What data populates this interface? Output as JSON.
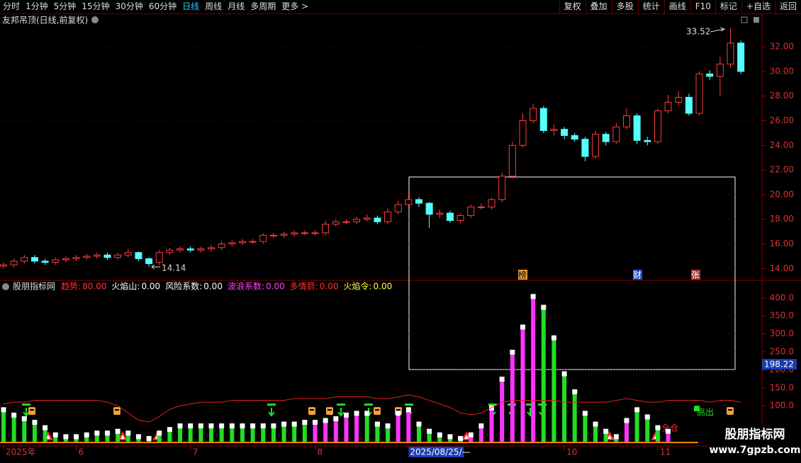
{
  "toolbar": {
    "left": [
      "分时",
      "1分钟",
      "5分钟",
      "15分钟",
      "30分钟",
      "60分钟",
      "日线",
      "周线",
      "月线",
      "多周期",
      "更多 >"
    ],
    "active_index": 6,
    "right": [
      "复权",
      "叠加",
      "多股",
      "统计",
      "画线",
      "F10",
      "标记",
      "+自选",
      "返回"
    ]
  },
  "chart_data": [
    {
      "type": "candlestick",
      "title": "友邦吊顶(日线,前复权)",
      "categories": [
        "2025年",
        null,
        null,
        null,
        null,
        null,
        null,
        "6",
        null,
        null,
        null,
        null,
        null,
        null,
        null,
        null,
        null,
        null,
        "7",
        null,
        null,
        null,
        null,
        null,
        null,
        null,
        null,
        null,
        null,
        null,
        "8",
        null,
        null,
        null,
        null,
        null,
        null,
        null,
        null,
        null,
        null,
        null,
        null,
        null,
        null,
        null,
        null,
        null,
        null,
        null,
        null,
        null,
        null,
        null,
        "10",
        null,
        null,
        null,
        null,
        null,
        null,
        null,
        null,
        "11",
        null,
        null,
        null,
        null,
        null,
        null,
        null,
        null
      ],
      "open": [
        14.2,
        14.3,
        14.6,
        14.9,
        14.6,
        14.5,
        14.7,
        14.8,
        14.9,
        15.0,
        15.1,
        14.9,
        15.1,
        15.3,
        14.8,
        14.5,
        15.3,
        15.5,
        15.6,
        15.5,
        15.6,
        15.7,
        16.0,
        16.1,
        16.2,
        16.2,
        16.7,
        16.7,
        16.8,
        16.9,
        16.9,
        16.9,
        17.6,
        17.8,
        17.8,
        18.0,
        18.1,
        17.8,
        18.6,
        19.2,
        19.6,
        19.3,
        18.4,
        18.5,
        17.9,
        18.3,
        19.0,
        19.0,
        19.6,
        21.5,
        24.0,
        26.0,
        27.0,
        25.2,
        25.3,
        24.8,
        24.5,
        23.1,
        24.9,
        24.3,
        25.5,
        26.4,
        24.4,
        24.3,
        26.8,
        27.5,
        27.9,
        26.6,
        29.8,
        29.6,
        30.6,
        32.3
      ],
      "high": [
        14.5,
        14.8,
        15.1,
        15.1,
        14.8,
        14.9,
        15.0,
        15.1,
        15.2,
        15.3,
        15.3,
        15.3,
        15.6,
        15.4,
        14.9,
        15.5,
        15.7,
        15.8,
        15.8,
        15.8,
        15.9,
        16.2,
        16.3,
        16.4,
        16.4,
        16.9,
        16.9,
        17.0,
        17.1,
        17.1,
        17.1,
        17.9,
        18.0,
        18.0,
        18.2,
        18.4,
        18.3,
        18.9,
        19.5,
        20.2,
        19.8,
        19.4,
        18.8,
        18.7,
        18.5,
        19.2,
        19.3,
        19.8,
        21.8,
        24.3,
        26.6,
        27.4,
        27.2,
        25.7,
        25.5,
        25.0,
        24.7,
        25.2,
        25.1,
        25.8,
        27.0,
        26.6,
        24.7,
        27.0,
        28.1,
        28.4,
        28.2,
        30.0,
        30.1,
        31.2,
        33.52,
        32.5
      ],
      "low": [
        14.0,
        14.1,
        14.4,
        14.4,
        14.3,
        14.3,
        14.5,
        14.6,
        14.7,
        14.8,
        14.7,
        14.7,
        14.9,
        14.6,
        14.14,
        14.3,
        15.1,
        15.3,
        15.3,
        15.3,
        15.4,
        15.5,
        15.8,
        15.9,
        16.0,
        16.0,
        16.5,
        16.5,
        16.6,
        16.7,
        16.7,
        16.7,
        17.4,
        17.6,
        17.6,
        17.8,
        17.6,
        17.6,
        18.4,
        19.0,
        19.0,
        17.3,
        18.1,
        17.7,
        17.7,
        18.1,
        18.8,
        18.8,
        19.4,
        21.3,
        23.8,
        25.8,
        25.0,
        24.8,
        24.5,
        24.3,
        22.7,
        22.9,
        24.0,
        24.1,
        25.3,
        24.1,
        24.0,
        24.1,
        26.6,
        27.2,
        26.4,
        26.4,
        29.3,
        28.0,
        30.3,
        29.8
      ],
      "close": [
        14.3,
        14.6,
        14.9,
        14.6,
        14.5,
        14.7,
        14.8,
        14.9,
        15.0,
        15.1,
        14.9,
        15.1,
        15.3,
        14.8,
        14.4,
        15.3,
        15.5,
        15.6,
        15.5,
        15.6,
        15.7,
        16.0,
        16.1,
        16.2,
        16.2,
        16.7,
        16.7,
        16.8,
        16.9,
        16.9,
        16.9,
        17.6,
        17.8,
        17.8,
        18.0,
        18.1,
        17.8,
        18.6,
        19.2,
        19.6,
        19.3,
        18.4,
        18.5,
        17.9,
        18.3,
        19.0,
        19.0,
        19.6,
        21.5,
        24.0,
        26.0,
        27.0,
        25.2,
        25.3,
        24.8,
        24.5,
        23.1,
        24.9,
        24.3,
        25.5,
        26.4,
        24.4,
        24.3,
        26.8,
        27.5,
        27.9,
        26.6,
        29.8,
        29.6,
        30.6,
        32.3,
        30.0
      ],
      "up_color": "#ff3c3c",
      "down_color": "#54ffff",
      "ylim": [
        13.1,
        33.5
      ],
      "yticks": [
        {
          "value": 14,
          "label": "14.00"
        },
        {
          "value": 16,
          "label": "16.00"
        },
        {
          "value": 18,
          "label": "18.00"
        },
        {
          "value": 20,
          "label": "20.00"
        },
        {
          "value": 22,
          "label": "22.00"
        },
        {
          "value": 24,
          "label": "24.00"
        },
        {
          "value": 26,
          "label": "26.00"
        },
        {
          "value": 28,
          "label": "28.00"
        },
        {
          "value": 30,
          "label": "30.00"
        },
        {
          "value": 32,
          "label": "32.00"
        }
      ],
      "grid": true,
      "max_label": "33.52",
      "min_label": "14.14",
      "markers": [
        "榜",
        "财",
        "张"
      ],
      "cursor_label": "2025/08/25/—"
    },
    {
      "type": "bar",
      "title": "股朋指标网",
      "legend": [
        {
          "label": "趋势:",
          "value": "80.00",
          "color": "#ff3030"
        },
        {
          "label": "火焰山:",
          "value": "0.00",
          "color": "#ffffff"
        },
        {
          "label": "风险系数:",
          "value": "0.00",
          "color": "#ffffff"
        },
        {
          "label": "波浪系数:",
          "value": "0.00",
          "color": "#ff40ff"
        },
        {
          "label": "多情箭:",
          "value": "0.00",
          "color": "#ff3030"
        },
        {
          "label": "火焰令:",
          "value": "0.00",
          "color": "#ffff40"
        }
      ],
      "values": [
        90,
        75,
        65,
        55,
        40,
        20,
        15,
        15,
        20,
        25,
        25,
        30,
        25,
        15,
        10,
        25,
        35,
        45,
        45,
        45,
        45,
        45,
        45,
        45,
        45,
        45,
        45,
        50,
        50,
        55,
        55,
        60,
        65,
        75,
        80,
        80,
        50,
        45,
        80,
        90,
        50,
        30,
        20,
        15,
        10,
        20,
        45,
        95,
        175,
        250,
        320,
        405,
        375,
        290,
        190,
        140,
        80,
        50,
        30,
        15,
        60,
        90,
        70,
        40,
        30,
        null,
        null,
        null,
        null,
        null,
        null,
        null
      ],
      "colors": [
        "#22dd22",
        "#22dd22",
        "#22dd22",
        "#22dd22",
        "#22dd22",
        "#22dd22",
        "#22dd22",
        "#22dd22",
        "#22dd22",
        "#22dd22",
        "#22dd22",
        "#22dd22",
        "#22dd22",
        "#22dd22",
        "#22dd22",
        "#22dd22",
        "#22dd22",
        "#22dd22",
        "#22dd22",
        "#22dd22",
        "#22dd22",
        "#22dd22",
        "#22dd22",
        "#22dd22",
        "#22dd22",
        "#22dd22",
        "#22dd22",
        "#22dd22",
        "#22dd22",
        "#22dd22",
        "#ff33ff",
        "#ff33ff",
        "#ff33ff",
        "#ff33ff",
        "#ff33ff",
        "#22dd22",
        "#22dd22",
        "#22dd22",
        "#ff33ff",
        "#ff33ff",
        "#22dd22",
        "#22dd22",
        "#22dd22",
        "#22dd22",
        "#22dd22",
        "#ff33ff",
        "#ff33ff",
        "#ff33ff",
        "#ff33ff",
        "#ff33ff",
        "#ff33ff",
        "#ff33ff",
        "#22dd22",
        "#22dd22",
        "#22dd22",
        "#22dd22",
        "#22dd22",
        "#22dd22",
        "#22dd22",
        "#22dd22",
        "#ff33ff",
        "#22dd22",
        "#22dd22",
        "#22dd22",
        "#ff33ff",
        null,
        null,
        null,
        null,
        null,
        null,
        null
      ],
      "line": {
        "color": "#e02020",
        "values": [
          105,
          110,
          110,
          115,
          115,
          115,
          115,
          115,
          115,
          115,
          110,
          100,
          80,
          60,
          55,
          70,
          90,
          100,
          105,
          110,
          110,
          110,
          115,
          115,
          115,
          115,
          115,
          115,
          120,
          120,
          120,
          120,
          125,
          125,
          125,
          125,
          120,
          120,
          125,
          130,
          125,
          115,
          105,
          95,
          80,
          75,
          80,
          95,
          110,
          115,
          115,
          115,
          115,
          115,
          110,
          110,
          110,
          110,
          110,
          115,
          120,
          115,
          110,
          110,
          115,
          115,
          115,
          115,
          110,
          115,
          115,
          110
        ]
      },
      "ylim": [
        -8,
        447
      ],
      "yticks": [
        {
          "value": 100,
          "label": "100.0"
        },
        {
          "value": 150,
          "label": "150.0"
        },
        {
          "value": 200,
          "label": "200.0"
        },
        {
          "value": 250,
          "label": "250.0"
        },
        {
          "value": 300,
          "label": "300.0"
        },
        {
          "value": 350,
          "label": "350.0"
        },
        {
          "value": 400,
          "label": "400.0"
        }
      ],
      "grid": true,
      "cursor_value": "198.22",
      "annotations": [
        "高出",
        "全仓"
      ]
    }
  ],
  "watermark": {
    "name": "股朋指标网",
    "url": "www.7gpzb.com"
  }
}
